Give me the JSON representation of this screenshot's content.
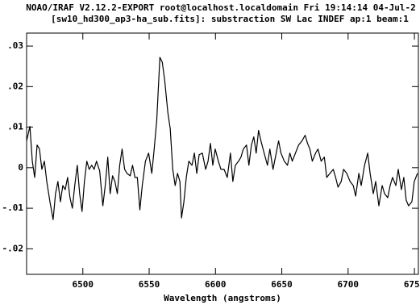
{
  "chart_data": {
    "type": "line",
    "title": "NOAO/IRAF V2.12.2-EXPORT root@localhost.localdomain Fri 19:14:14 04-Jul-2",
    "subtitle": "[sw10_hd300_ap3-ha_sub.fits]: substraction SW Lac INDEF ap:1 beam:1",
    "x_label": "Wavelength (angstroms)",
    "xlim": [
      6457.6,
      6753
    ],
    "ylim": [
      -0.0263,
      0.0332
    ],
    "xticks": [
      6500,
      6550,
      6600,
      6650,
      6700,
      6750
    ],
    "yticks": [
      {
        "value": -0.02,
        "label": "-.02"
      },
      {
        "value": -0.01,
        "label": "-.01"
      },
      0,
      {
        "value": 0.01,
        "label": ".01"
      },
      {
        "value": 0.02,
        "label": ".02"
      },
      {
        "value": 0.03,
        "label": ".03"
      }
    ],
    "x": [
      6457.6,
      6460.1,
      6461.9,
      6463.7,
      6465.5,
      6467.3,
      6469.1,
      6471.0,
      6472.8,
      6475.2,
      6477.6,
      6479.4,
      6481.2,
      6483.1,
      6484.9,
      6486.7,
      6488.5,
      6490.3,
      6492.1,
      6493.9,
      6495.8,
      6497.6,
      6499.4,
      6501.2,
      6503.0,
      6504.8,
      6506.7,
      6508.5,
      6510.3,
      6512.7,
      6515.1,
      6516.9,
      6518.8,
      6520.6,
      6522.4,
      6524.2,
      6526.0,
      6527.8,
      6529.6,
      6531.5,
      6533.3,
      6535.7,
      6537.5,
      6539.3,
      6541.1,
      6543.0,
      6544.8,
      6547.2,
      6549.6,
      6552.0,
      6553.8,
      6555.7,
      6558.1,
      6559.9,
      6561.7,
      6564.1,
      6565.9,
      6567.8,
      6569.6,
      6571.4,
      6573.2,
      6574.4,
      6576.2,
      6578.0,
      6579.9,
      6582.3,
      6584.1,
      6585.9,
      6587.7,
      6590.1,
      6592.6,
      6594.4,
      6596.2,
      6598.0,
      6599.8,
      6602.2,
      6604.1,
      6606.5,
      6608.9,
      6611.3,
      6613.1,
      6615.0,
      6617.4,
      6619.2,
      6621.0,
      6623.4,
      6625.2,
      6627.1,
      6628.9,
      6630.7,
      6632.5,
      6634.3,
      6636.7,
      6639.2,
      6641.0,
      6643.4,
      6645.2,
      6647.6,
      6649.4,
      6651.9,
      6654.3,
      6656.1,
      6657.9,
      6660.3,
      6662.7,
      6665.2,
      6667.6,
      6669.4,
      6671.2,
      6673.0,
      6675.5,
      6677.3,
      6679.7,
      6682.1,
      6683.9,
      6686.3,
      6688.8,
      6690.6,
      6692.4,
      6694.8,
      6696.6,
      6699.0,
      6701.5,
      6703.9,
      6705.7,
      6708.1,
      6709.9,
      6712.4,
      6714.8,
      6716.6,
      6719.0,
      6720.8,
      6723.2,
      6725.7,
      6727.5,
      6729.9,
      6731.7,
      6733.5,
      6736.0,
      6737.8,
      6740.2,
      6742.0,
      6743.8,
      6745.6,
      6748.1,
      6749.9,
      6752.3
    ],
    "series": [
      {
        "color": "#000000",
        "values": [
          0.0066,
          0.0102,
          0.0016,
          -0.0024,
          0.0056,
          0.0046,
          -0.0004,
          0.0016,
          -0.0034,
          -0.0084,
          -0.0128,
          -0.0064,
          -0.0034,
          -0.0084,
          -0.0044,
          -0.0054,
          -0.0024,
          -0.0074,
          -0.01,
          -0.0044,
          0.0006,
          -0.0064,
          -0.0108,
          -0.0034,
          0.0016,
          -0.0004,
          0.0006,
          -0.0004,
          0.0016,
          -0.0008,
          -0.0094,
          -0.0044,
          0.0026,
          -0.0064,
          -0.002,
          -0.0034,
          -0.0064,
          0.0006,
          0.0046,
          -0.0004,
          -0.0014,
          -0.002,
          0.0006,
          -0.0024,
          -0.0024,
          -0.0104,
          -0.0044,
          0.0016,
          0.0036,
          -0.0014,
          0.0046,
          0.0116,
          0.0272,
          0.026,
          0.0216,
          0.0136,
          0.0096,
          -0.0004,
          -0.0044,
          -0.0014,
          -0.0034,
          -0.0124,
          -0.0084,
          -0.0024,
          0.0016,
          0.0006,
          0.0036,
          -0.0014,
          0.0032,
          0.0036,
          -0.0004,
          0.0016,
          0.006,
          0.0006,
          0.0046,
          0.0016,
          -0.0004,
          -0.0004,
          -0.0024,
          0.0036,
          -0.0034,
          0.0006,
          0.0016,
          0.0026,
          0.0046,
          0.0056,
          0.0006,
          0.0056,
          0.0076,
          0.0036,
          0.0092,
          0.0066,
          0.0036,
          0.0006,
          0.0046,
          -0.0004,
          0.0026,
          0.0066,
          0.0036,
          0.0016,
          0.0006,
          0.0036,
          0.0016,
          0.0036,
          0.0056,
          0.0066,
          0.008,
          0.006,
          0.0046,
          0.0016,
          0.0036,
          0.0046,
          0.0016,
          0.0026,
          -0.0024,
          -0.0014,
          -0.0004,
          -0.0024,
          -0.0048,
          -0.0034,
          -0.0004,
          -0.0014,
          -0.0034,
          -0.0044,
          -0.007,
          -0.0014,
          -0.0044,
          0.0006,
          0.0036,
          -0.0014,
          -0.0064,
          -0.0034,
          -0.0094,
          -0.0044,
          -0.0064,
          -0.0074,
          -0.0044,
          -0.0024,
          -0.0044,
          -0.0004,
          -0.0054,
          -0.0024,
          -0.008,
          -0.0094,
          -0.0084,
          -0.0034,
          -0.0014
        ]
      }
    ]
  }
}
